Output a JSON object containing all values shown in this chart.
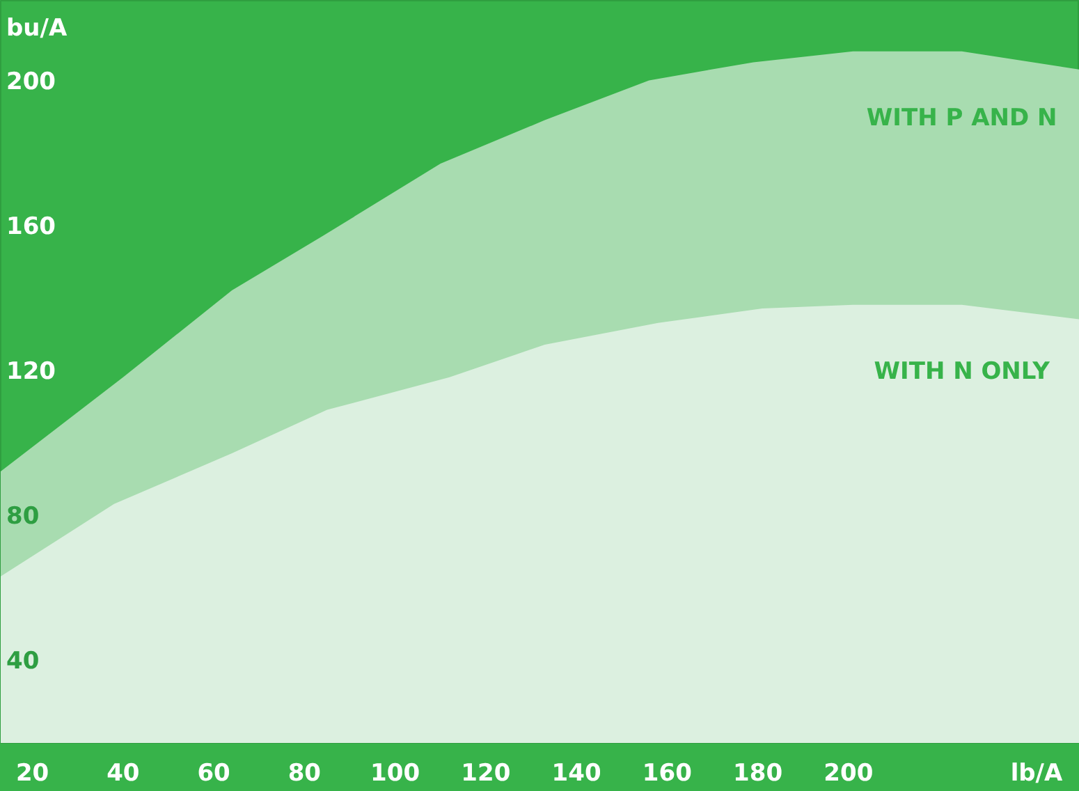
{
  "chart_data": {
    "type": "area",
    "xlabel": "lb/A",
    "ylabel": "bu/A",
    "xlim": [
      13,
      251
    ],
    "ylim": [
      17,
      222
    ],
    "xticks": [
      20,
      40,
      60,
      80,
      100,
      120,
      140,
      160,
      180,
      200
    ],
    "yticks": [
      40,
      80,
      120,
      160,
      200
    ],
    "grid": false,
    "legend": false,
    "series": [
      {
        "name": "WITH P AND N",
        "color": "#a8dcb0",
        "x": [
          13,
          40,
          64,
          84,
          110,
          133,
          156,
          179,
          201,
          225,
          251
        ],
        "values": [
          92,
          118,
          142,
          157,
          177,
          189,
          200,
          205,
          208,
          208,
          203
        ]
      },
      {
        "name": "WITH N ONLY",
        "color": "#dcf0e0",
        "x": [
          13,
          38,
          64,
          85,
          112,
          133,
          158,
          181,
          201,
          225,
          251
        ],
        "values": [
          63,
          83,
          97,
          109,
          118,
          127,
          133,
          137,
          138,
          138,
          134
        ]
      }
    ]
  }
}
